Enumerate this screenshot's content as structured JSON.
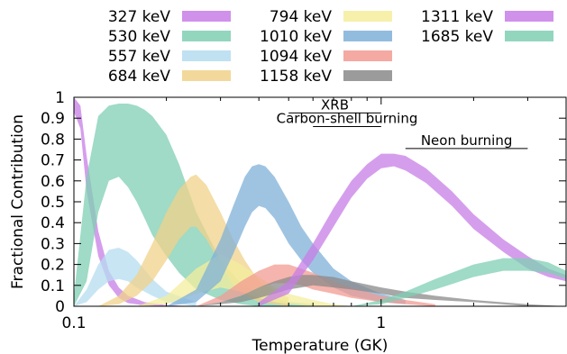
{
  "chart_data": {
    "type": "area",
    "title": "",
    "xlabel": "Temperature (GK)",
    "ylabel": "Fractional Contribution",
    "x_scale": "log",
    "xlim": [
      0.1,
      4.0
    ],
    "ylim": [
      0,
      1
    ],
    "x_ticks": [
      {
        "value": 0.1,
        "label": "0.1"
      },
      {
        "value": 1,
        "label": "1"
      }
    ],
    "y_ticks": [
      {
        "value": 0,
        "label": "0"
      },
      {
        "value": 0.1,
        "label": "0.1"
      },
      {
        "value": 0.2,
        "label": "0.2"
      },
      {
        "value": 0.3,
        "label": "0.3"
      },
      {
        "value": 0.4,
        "label": "0.4"
      },
      {
        "value": 0.5,
        "label": "0.5"
      },
      {
        "value": 0.6,
        "label": "0.6"
      },
      {
        "value": 0.7,
        "label": "0.7"
      },
      {
        "value": 0.8,
        "label": "0.8"
      },
      {
        "value": 0.9,
        "label": "0.9"
      },
      {
        "value": 1,
        "label": "1"
      }
    ],
    "legend_placement": "top, outside plot, three columns",
    "annotations": [
      {
        "text": "XRB",
        "x_range": [
          0.5,
          1.0
        ],
        "y": 0.925
      },
      {
        "text": "Carbon-shell burning",
        "x_range": [
          0.6,
          1.0
        ],
        "y": 0.86
      },
      {
        "text": "Neon burning",
        "x_range": [
          1.2,
          3.0
        ],
        "y": 0.755
      }
    ],
    "series": [
      {
        "name": "327 keV",
        "color": "#c77ee6",
        "x": [
          0.1,
          0.105,
          0.11,
          0.12,
          0.13,
          0.14,
          0.15,
          0.17,
          0.2,
          0.25
        ],
        "upper": [
          1.0,
          0.96,
          0.72,
          0.36,
          0.17,
          0.09,
          0.05,
          0.02,
          0.005,
          0.0
        ],
        "lower": [
          0.93,
          0.85,
          0.55,
          0.24,
          0.1,
          0.04,
          0.015,
          0.004,
          0.0,
          0.0
        ]
      },
      {
        "name": "530 keV",
        "color": "#7fcfb3",
        "x": [
          0.1,
          0.11,
          0.12,
          0.13,
          0.14,
          0.15,
          0.16,
          0.17,
          0.18,
          0.2,
          0.22,
          0.25,
          0.3,
          0.35,
          0.4,
          0.5,
          0.6
        ],
        "upper": [
          0.05,
          0.62,
          0.91,
          0.96,
          0.97,
          0.97,
          0.96,
          0.94,
          0.91,
          0.82,
          0.68,
          0.45,
          0.22,
          0.11,
          0.06,
          0.02,
          0.01
        ],
        "lower": [
          0.0,
          0.12,
          0.45,
          0.6,
          0.62,
          0.57,
          0.5,
          0.42,
          0.34,
          0.24,
          0.16,
          0.08,
          0.03,
          0.01,
          0.0,
          0.0,
          0.0
        ]
      },
      {
        "name": "557 keV",
        "color": "#b5dcf0",
        "x": [
          0.1,
          0.11,
          0.12,
          0.13,
          0.14,
          0.15,
          0.16,
          0.18,
          0.2,
          0.25
        ],
        "upper": [
          0.0,
          0.08,
          0.2,
          0.27,
          0.28,
          0.26,
          0.22,
          0.13,
          0.07,
          0.02
        ],
        "lower": [
          0.0,
          0.02,
          0.08,
          0.12,
          0.13,
          0.12,
          0.09,
          0.05,
          0.02,
          0.0
        ]
      },
      {
        "name": "684 keV",
        "color": "#f0d28a",
        "x": [
          0.12,
          0.14,
          0.16,
          0.18,
          0.2,
          0.22,
          0.24,
          0.25,
          0.27,
          0.3,
          0.33,
          0.36,
          0.4,
          0.5
        ],
        "upper": [
          0.0,
          0.05,
          0.15,
          0.3,
          0.45,
          0.56,
          0.62,
          0.63,
          0.58,
          0.45,
          0.32,
          0.22,
          0.12,
          0.04
        ],
        "lower": [
          0.0,
          0.01,
          0.05,
          0.12,
          0.22,
          0.32,
          0.38,
          0.38,
          0.32,
          0.2,
          0.1,
          0.05,
          0.02,
          0.0
        ]
      },
      {
        "name": "794 keV",
        "color": "#f4ed9c",
        "x": [
          0.16,
          0.2,
          0.25,
          0.3,
          0.35,
          0.4,
          0.45,
          0.5,
          0.6,
          0.7,
          0.8
        ],
        "upper": [
          0.0,
          0.05,
          0.18,
          0.25,
          0.2,
          0.14,
          0.09,
          0.06,
          0.03,
          0.01,
          0.0
        ],
        "lower": [
          0.0,
          0.01,
          0.06,
          0.09,
          0.07,
          0.04,
          0.02,
          0.01,
          0.0,
          0.0,
          0.0
        ]
      },
      {
        "name": "1010 keV",
        "color": "#7fb0d8",
        "x": [
          0.2,
          0.25,
          0.3,
          0.33,
          0.36,
          0.38,
          0.4,
          0.42,
          0.45,
          0.5,
          0.55,
          0.6,
          0.7,
          0.8,
          1.0,
          1.2
        ],
        "upper": [
          0.0,
          0.08,
          0.32,
          0.48,
          0.62,
          0.67,
          0.68,
          0.67,
          0.62,
          0.5,
          0.38,
          0.3,
          0.18,
          0.12,
          0.06,
          0.03
        ],
        "lower": [
          0.0,
          0.02,
          0.12,
          0.25,
          0.38,
          0.45,
          0.48,
          0.47,
          0.42,
          0.3,
          0.22,
          0.16,
          0.09,
          0.05,
          0.02,
          0.01
        ]
      },
      {
        "name": "1094 keV",
        "color": "#f29b92",
        "x": [
          0.25,
          0.3,
          0.35,
          0.4,
          0.45,
          0.5,
          0.55,
          0.6,
          0.7,
          0.8,
          1.0,
          1.2,
          1.5
        ],
        "upper": [
          0.0,
          0.05,
          0.12,
          0.17,
          0.2,
          0.2,
          0.18,
          0.16,
          0.12,
          0.09,
          0.05,
          0.03,
          0.01
        ],
        "lower": [
          0.0,
          0.02,
          0.05,
          0.09,
          0.11,
          0.11,
          0.1,
          0.08,
          0.06,
          0.04,
          0.02,
          0.01,
          0.0
        ]
      },
      {
        "name": "1158 keV",
        "color": "#8a8a8a",
        "x": [
          0.25,
          0.3,
          0.35,
          0.4,
          0.45,
          0.5,
          0.55,
          0.6,
          0.7,
          0.8,
          1.0,
          1.2,
          1.5,
          2.0,
          3.0,
          4.0
        ],
        "upper": [
          0.0,
          0.02,
          0.05,
          0.09,
          0.12,
          0.14,
          0.15,
          0.15,
          0.14,
          0.12,
          0.09,
          0.07,
          0.05,
          0.03,
          0.01,
          0.0
        ],
        "lower": [
          0.0,
          0.01,
          0.02,
          0.04,
          0.06,
          0.08,
          0.09,
          0.1,
          0.09,
          0.08,
          0.06,
          0.04,
          0.03,
          0.02,
          0.0,
          0.0
        ]
      },
      {
        "name": "1311 keV",
        "color": "#c77ee6",
        "x": [
          0.4,
          0.5,
          0.6,
          0.7,
          0.8,
          0.9,
          1.0,
          1.1,
          1.2,
          1.4,
          1.7,
          2.0,
          2.5,
          3.0,
          3.5,
          4.0
        ],
        "upper": [
          0.02,
          0.12,
          0.3,
          0.47,
          0.6,
          0.68,
          0.73,
          0.73,
          0.72,
          0.66,
          0.55,
          0.44,
          0.32,
          0.24,
          0.18,
          0.15
        ],
        "lower": [
          0.0,
          0.06,
          0.22,
          0.38,
          0.52,
          0.61,
          0.66,
          0.67,
          0.65,
          0.59,
          0.48,
          0.37,
          0.26,
          0.18,
          0.14,
          0.12
        ]
      },
      {
        "name": "1685 keV",
        "color": "#7fcfb3",
        "x": [
          0.8,
          1.0,
          1.2,
          1.5,
          2.0,
          2.5,
          3.0,
          3.5,
          4.0
        ],
        "upper": [
          0.0,
          0.03,
          0.07,
          0.13,
          0.2,
          0.23,
          0.23,
          0.21,
          0.17
        ],
        "lower": [
          0.0,
          0.01,
          0.04,
          0.08,
          0.14,
          0.17,
          0.17,
          0.16,
          0.13
        ]
      }
    ]
  }
}
